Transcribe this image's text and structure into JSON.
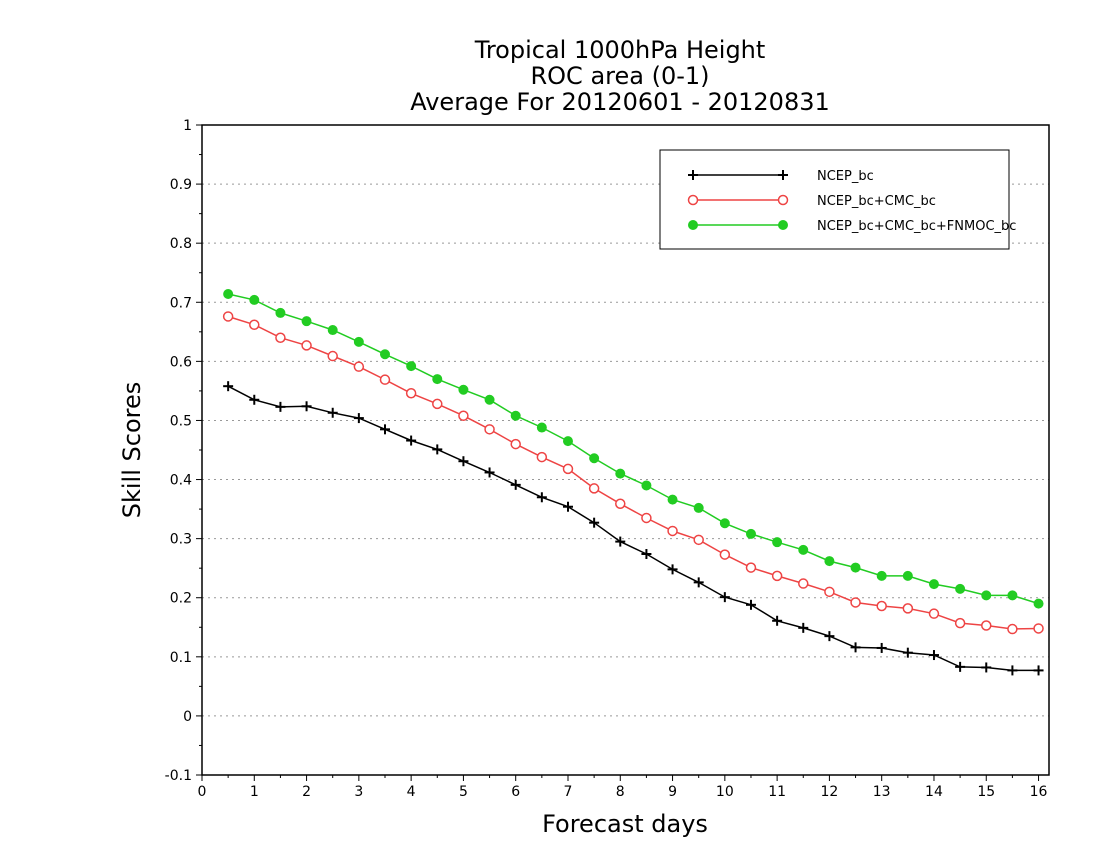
{
  "chart_data": {
    "type": "line",
    "title_lines": [
      "Tropical 1000hPa Height",
      "ROC area (0-1)",
      "Average For 20120601 - 20120831"
    ],
    "xlabel": "Forecast days",
    "ylabel": "Skill Scores",
    "xlim": [
      0,
      16.2
    ],
    "ylim": [
      -0.1,
      1
    ],
    "x_ticks": [
      "0",
      "1",
      "2",
      "3",
      "4",
      "5",
      "6",
      "7",
      "8",
      "9",
      "10",
      "11",
      "12",
      "13",
      "14",
      "15",
      "16"
    ],
    "y_ticks": [
      "-0.1",
      "0",
      "0.1",
      "0.2",
      "0.3",
      "0.4",
      "0.5",
      "0.6",
      "0.7",
      "0.8",
      "0.9",
      "1"
    ],
    "grid": "horizontal dotted",
    "legend_position": "top-right",
    "x": [
      0.5,
      1,
      1.5,
      2,
      2.5,
      3,
      3.5,
      4,
      4.5,
      5,
      5.5,
      6,
      6.5,
      7,
      7.5,
      8,
      8.5,
      9,
      9.5,
      10,
      10.5,
      11,
      11.5,
      12,
      12.5,
      13,
      13.5,
      14,
      14.5,
      15,
      15.5,
      16
    ],
    "series": [
      {
        "name": "NCEP_bc",
        "color": "#000000",
        "marker": "plus",
        "values": [
          0.558,
          0.535,
          0.523,
          0.524,
          0.513,
          0.504,
          0.485,
          0.466,
          0.451,
          0.431,
          0.412,
          0.391,
          0.37,
          0.354,
          0.327,
          0.295,
          0.274,
          0.248,
          0.226,
          0.201,
          0.188,
          0.161,
          0.149,
          0.135,
          0.116,
          0.115,
          0.107,
          0.103,
          0.083,
          0.082,
          0.077,
          0.077
        ]
      },
      {
        "name": "NCEP_bc+CMC_bc",
        "color": "#ee4444",
        "marker": "open-circle",
        "values": [
          0.676,
          0.662,
          0.64,
          0.627,
          0.609,
          0.591,
          0.569,
          0.546,
          0.528,
          0.508,
          0.485,
          0.46,
          0.438,
          0.418,
          0.385,
          0.359,
          0.335,
          0.313,
          0.298,
          0.273,
          0.251,
          0.237,
          0.224,
          0.21,
          0.192,
          0.186,
          0.182,
          0.173,
          0.157,
          0.153,
          0.147,
          0.148
        ]
      },
      {
        "name": "NCEP_bc+CMC_bc+FNMOC_bc",
        "color": "#22cc22",
        "marker": "filled-circle",
        "values": [
          0.714,
          0.704,
          0.682,
          0.668,
          0.653,
          0.633,
          0.612,
          0.592,
          0.57,
          0.552,
          0.535,
          0.508,
          0.488,
          0.465,
          0.436,
          0.41,
          0.39,
          0.366,
          0.352,
          0.326,
          0.308,
          0.294,
          0.281,
          0.262,
          0.251,
          0.237,
          0.237,
          0.223,
          0.215,
          0.204,
          0.204,
          0.19
        ]
      }
    ]
  }
}
